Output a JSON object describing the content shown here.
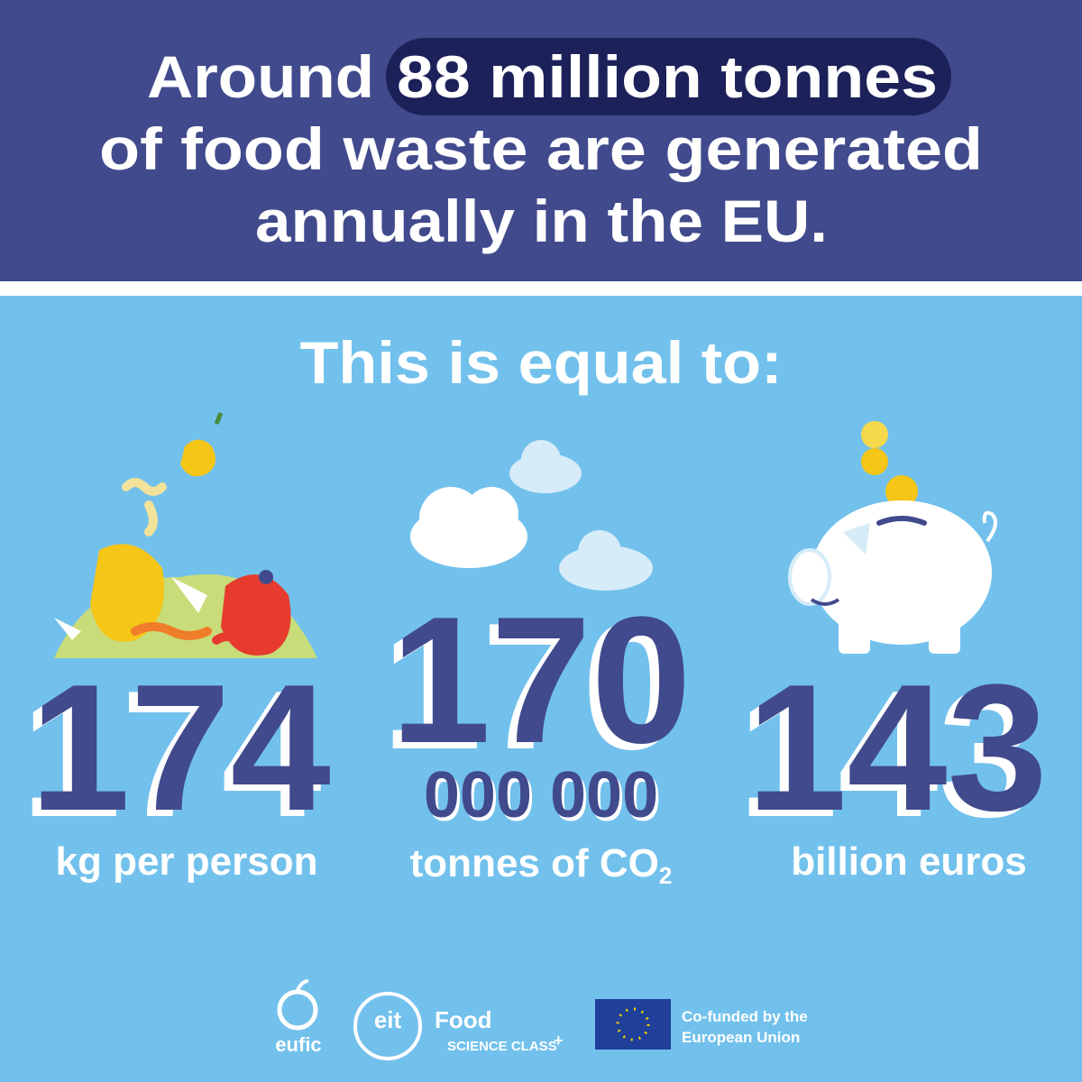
{
  "header": {
    "line1_start": "Around",
    "highlight": "88 million tonnes",
    "line2": "of food waste are generated",
    "line3": "annually in the EU."
  },
  "subtitle": "This is equal to:",
  "stats": [
    {
      "number": "174",
      "label": "kg per person"
    },
    {
      "number": "170",
      "number_rest": "000 000",
      "label": "tonnes of CO",
      "label_subscript": "2"
    },
    {
      "number": "143",
      "label": "billion euros"
    }
  ],
  "footer": {
    "eufic": "eufic",
    "eit": "eit",
    "food": "Food",
    "science_class": "SCIENCE CLASS",
    "plus": "+",
    "eu_line1": "Co-funded by the",
    "eu_line2": "European Union"
  }
}
